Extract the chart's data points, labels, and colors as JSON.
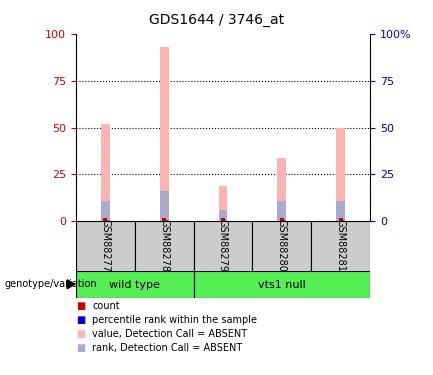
{
  "title": "GDS1644 / 3746_at",
  "samples": [
    "GSM88277",
    "GSM88278",
    "GSM88279",
    "GSM88280",
    "GSM88281"
  ],
  "pink_bar_values": [
    52,
    93,
    19,
    34,
    50
  ],
  "blue_bar_values": [
    11,
    16,
    6,
    11,
    11
  ],
  "red_bar_height": 1.5,
  "ylim": [
    0,
    100
  ],
  "yticks": [
    0,
    25,
    50,
    75,
    100
  ],
  "left_axis_color": "#cc0000",
  "right_axis_color": "#0000cc",
  "pink_color": "#ffb3b3",
  "blue_color": "#aaaacc",
  "red_color": "#cc0000",
  "legend_items": [
    {
      "label": "count",
      "color": "#cc0000"
    },
    {
      "label": "percentile rank within the sample",
      "color": "#0000cc"
    },
    {
      "label": "value, Detection Call = ABSENT",
      "color": "#ffb3b3"
    },
    {
      "label": "rank, Detection Call = ABSENT",
      "color": "#aaaacc"
    }
  ],
  "genotype_label": "genotype/variation",
  "green_color": "#55ee55",
  "gray_color": "#cccccc",
  "bar_width": 0.15,
  "right_ytick_labels": [
    "0",
    "25",
    "50",
    "75",
    "100%"
  ]
}
